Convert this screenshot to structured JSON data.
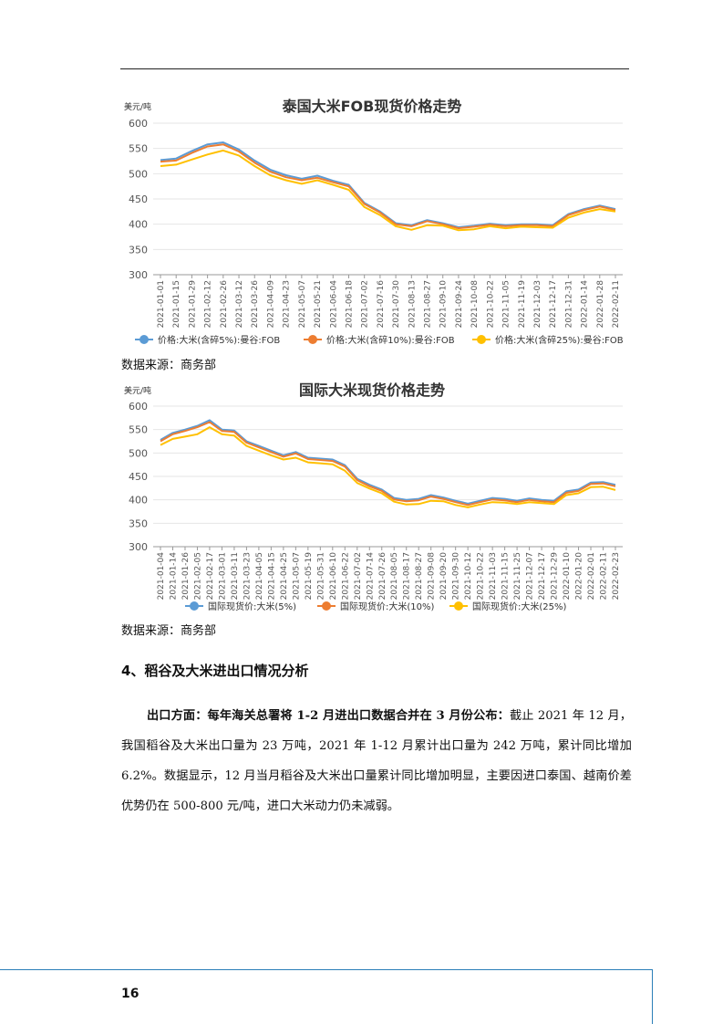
{
  "source_note_1": "数据来源：商务部",
  "source_note_2": "数据来源：商务部",
  "section": {
    "heading": "4、稻谷及大米进出口情况分析",
    "paragraph_lead": "出口方面：每年海关总署将 1-2 月进出口数据合并在 3 月份公布：",
    "paragraph_body": "截止 2021 年 12 月，我国稻谷及大米出口量为 23 万吨，2021 年 1-12 月累计出口量为 242 万吨，累计同比增加 6.2%。数据显示，12 月当月稻谷及大米出口量累计同比增加明显，主要因进口泰国、越南价差优势仍在 500-800 元/吨，进口大米动力仍未减弱。"
  },
  "page_number": "16",
  "colors": {
    "series_5": "#5b9bd5",
    "series_10": "#ed7d31",
    "series_25": "#ffc000",
    "grid": "#e6e6e6",
    "footer_rule": "#2b7fb8"
  },
  "chart_data": [
    {
      "type": "line",
      "title": "泰国大米FOB现货价格走势",
      "ylabel": "美元/吨",
      "ylim": [
        300,
        600
      ],
      "yticks": [
        "300",
        "350",
        "400",
        "450",
        "500",
        "550",
        "600"
      ],
      "categories": [
        "2021-01-01",
        "2021-01-15",
        "2021-01-29",
        "2021-02-12",
        "2021-02-26",
        "2021-03-12",
        "2021-03-26",
        "2021-04-09",
        "2021-04-23",
        "2021-05-07",
        "2021-05-21",
        "2021-06-04",
        "2021-06-18",
        "2021-07-02",
        "2021-07-16",
        "2021-07-30",
        "2021-08-13",
        "2021-08-27",
        "2021-09-10",
        "2021-09-24",
        "2021-10-08",
        "2021-10-22",
        "2021-11-05",
        "2021-11-19",
        "2021-12-03",
        "2021-12-17",
        "2021-12-31",
        "2022-01-14",
        "2022-01-28",
        "2022-02-11"
      ],
      "legend_position": "bottom",
      "series": [
        {
          "name": "价格:大米(含碎5%):曼谷:FOB",
          "color": "#5b9bd5",
          "values": [
            527,
            530,
            545,
            558,
            562,
            548,
            526,
            508,
            497,
            490,
            496,
            486,
            478,
            442,
            425,
            402,
            398,
            408,
            402,
            394,
            397,
            401,
            398,
            400,
            400,
            398,
            420,
            430,
            437,
            430
          ]
        },
        {
          "name": "价格:大米(含碎10%):曼谷:FOB",
          "color": "#ed7d31",
          "values": [
            524,
            526,
            541,
            554,
            558,
            544,
            522,
            504,
            493,
            487,
            492,
            483,
            475,
            440,
            423,
            400,
            396,
            406,
            400,
            392,
            395,
            399,
            396,
            398,
            398,
            396,
            418,
            428,
            435,
            428
          ]
        },
        {
          "name": "价格:大米(含碎25%):曼谷:FOB",
          "color": "#ffc000",
          "values": [
            515,
            518,
            528,
            538,
            546,
            536,
            515,
            497,
            487,
            480,
            487,
            478,
            468,
            434,
            418,
            396,
            389,
            398,
            397,
            388,
            390,
            396,
            392,
            395,
            394,
            393,
            413,
            423,
            430,
            425
          ]
        }
      ]
    },
    {
      "type": "line",
      "title": "国际大米现货价格走势",
      "ylabel": "美元/吨",
      "ylim": [
        300,
        600
      ],
      "yticks": [
        "300",
        "350",
        "400",
        "450",
        "500",
        "550",
        "600"
      ],
      "categories": [
        "2021-01-04",
        "2021-01-14",
        "2021-01-26",
        "2021-02-05",
        "2021-02-17",
        "2021-03-01",
        "2021-03-11",
        "2021-03-23",
        "2021-04-05",
        "2021-04-15",
        "2021-04-25",
        "2021-05-07",
        "2021-05-19",
        "2021-05-31",
        "2021-06-10",
        "2021-06-22",
        "2021-07-02",
        "2021-07-14",
        "2021-07-26",
        "2021-08-05",
        "2021-08-17",
        "2021-08-27",
        "2021-09-08",
        "2021-09-20",
        "2021-09-30",
        "2021-10-12",
        "2021-10-22",
        "2021-11-03",
        "2021-11-15",
        "2021-11-25",
        "2021-12-07",
        "2021-12-17",
        "2021-12-29",
        "2022-01-10",
        "2022-01-20",
        "2022-02-01",
        "2022-02-11",
        "2022-02-23"
      ],
      "legend_position": "bottom",
      "series": [
        {
          "name": "国际现货价:大米(5%)",
          "color": "#5b9bd5",
          "values": [
            528,
            543,
            550,
            558,
            570,
            550,
            548,
            525,
            515,
            505,
            495,
            502,
            490,
            488,
            486,
            474,
            445,
            432,
            422,
            404,
            400,
            402,
            410,
            405,
            398,
            392,
            398,
            404,
            402,
            398,
            403,
            400,
            398,
            418,
            422,
            437,
            438,
            432
          ]
        },
        {
          "name": "国际现货价:大米(10%)",
          "color": "#ed7d31",
          "values": [
            525,
            540,
            547,
            555,
            566,
            547,
            545,
            522,
            512,
            502,
            492,
            499,
            487,
            485,
            483,
            471,
            442,
            429,
            419,
            401,
            397,
            399,
            407,
            402,
            395,
            389,
            395,
            401,
            399,
            395,
            400,
            397,
            395,
            415,
            419,
            434,
            435,
            429
          ]
        },
        {
          "name": "国际现货价:大米(25%)",
          "color": "#ffc000",
          "values": [
            517,
            530,
            535,
            540,
            555,
            540,
            537,
            515,
            505,
            495,
            486,
            490,
            480,
            478,
            476,
            462,
            436,
            424,
            414,
            396,
            390,
            391,
            398,
            397,
            389,
            384,
            390,
            395,
            394,
            391,
            395,
            393,
            391,
            410,
            414,
            427,
            428,
            421
          ]
        }
      ]
    }
  ]
}
